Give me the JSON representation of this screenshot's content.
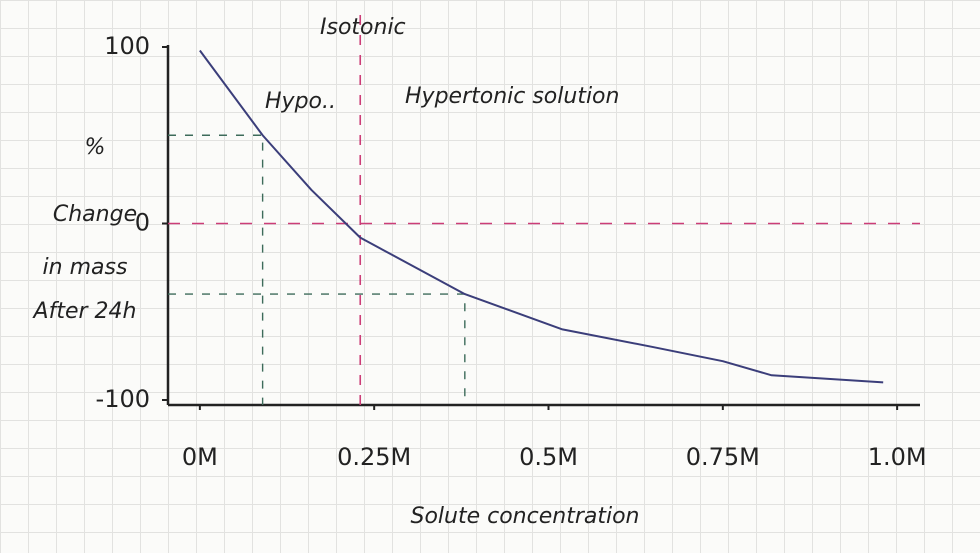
{
  "chart_data": {
    "type": "line",
    "annotations": [
      "Isotonic",
      "Hypo..",
      "Hypertonic solution"
    ],
    "ylabel": [
      "%",
      "Change",
      "in mass",
      "After 24h"
    ],
    "xlabel": "Solute concentration",
    "x": [
      0,
      0.09,
      0.16,
      0.23,
      0.38,
      0.52,
      0.65,
      0.75,
      0.82,
      0.98
    ],
    "series": [
      {
        "color": "#3b3e7a",
        "values": [
          98,
          50,
          19,
          -8,
          -40,
          -60,
          -70,
          -78,
          -86,
          -90
        ]
      }
    ],
    "xlim": [
      -0.05,
      1.05
    ],
    "xticks": [
      {
        "value": 0,
        "label": "0M"
      },
      {
        "value": 0.25,
        "label": "0.25M"
      },
      {
        "value": 0.5,
        "label": "0.5M"
      },
      {
        "value": 0.75,
        "label": "0.75M"
      },
      {
        "value": 1,
        "label": "1.0M"
      }
    ],
    "ylim": [
      -100,
      100
    ],
    "yticks": [
      -100,
      0,
      100
    ],
    "annotation_color": "#cc3d78",
    "guide_color": "#3d6b5a"
  }
}
